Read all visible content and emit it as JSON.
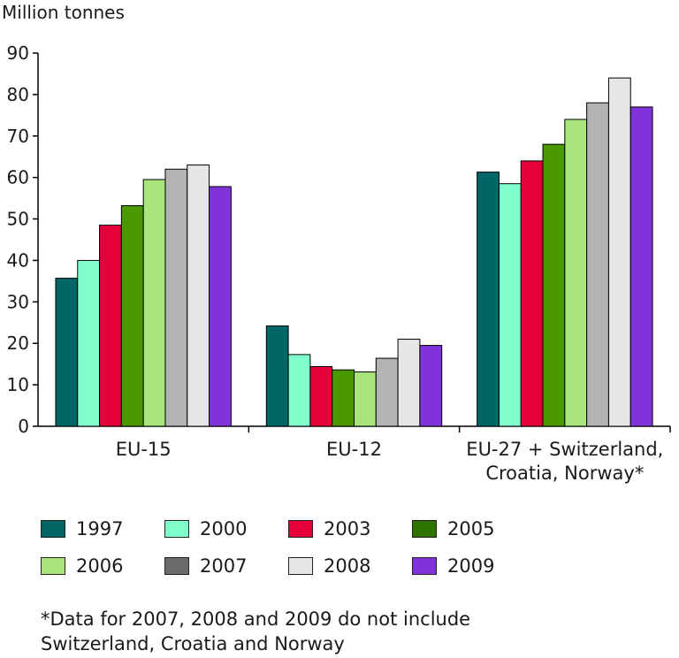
{
  "chart_data": {
    "type": "bar",
    "ylabel": "Million tonnes",
    "ylim": [
      0,
      90
    ],
    "yticks": [
      0,
      10,
      20,
      30,
      40,
      50,
      60,
      70,
      80,
      90
    ],
    "grid": false,
    "legend_position": "bottom",
    "categories": [
      [
        "EU-15"
      ],
      [
        "EU-12"
      ],
      [
        "EU-27 + Switzerland,",
        "Croatia, Norway*"
      ]
    ],
    "series": [
      {
        "name": "1997",
        "color": "#006666",
        "values": [
          35.7,
          24.2,
          61.3
        ]
      },
      {
        "name": "2000",
        "color": "#80ffcc",
        "values": [
          40.0,
          17.3,
          58.5
        ]
      },
      {
        "name": "2003",
        "color": "#e6003a",
        "values": [
          48.5,
          14.4,
          64.0
        ]
      },
      {
        "name": "2005",
        "color": "#4a9900",
        "values": [
          53.2,
          13.6,
          68.0
        ]
      },
      {
        "name": "2006",
        "color": "#a8e57a",
        "values": [
          59.5,
          13.1,
          74.0
        ]
      },
      {
        "name": "2007",
        "color": "#b3b3b3",
        "values": [
          62.0,
          16.4,
          78.0
        ]
      },
      {
        "name": "2008",
        "color": "#e6e6e6",
        "values": [
          63.0,
          21.0,
          84.0
        ]
      },
      {
        "name": "2009",
        "color": "#8033d9",
        "values": [
          57.8,
          19.5,
          77.0
        ]
      }
    ],
    "legend_swatch_colors": {
      "2005": "#2e7300",
      "2007": "#6b6b6b"
    },
    "footnote": [
      "*Data for 2007, 2008 and 2009 do not include",
      "Switzerland, Croatia and Norway"
    ]
  }
}
